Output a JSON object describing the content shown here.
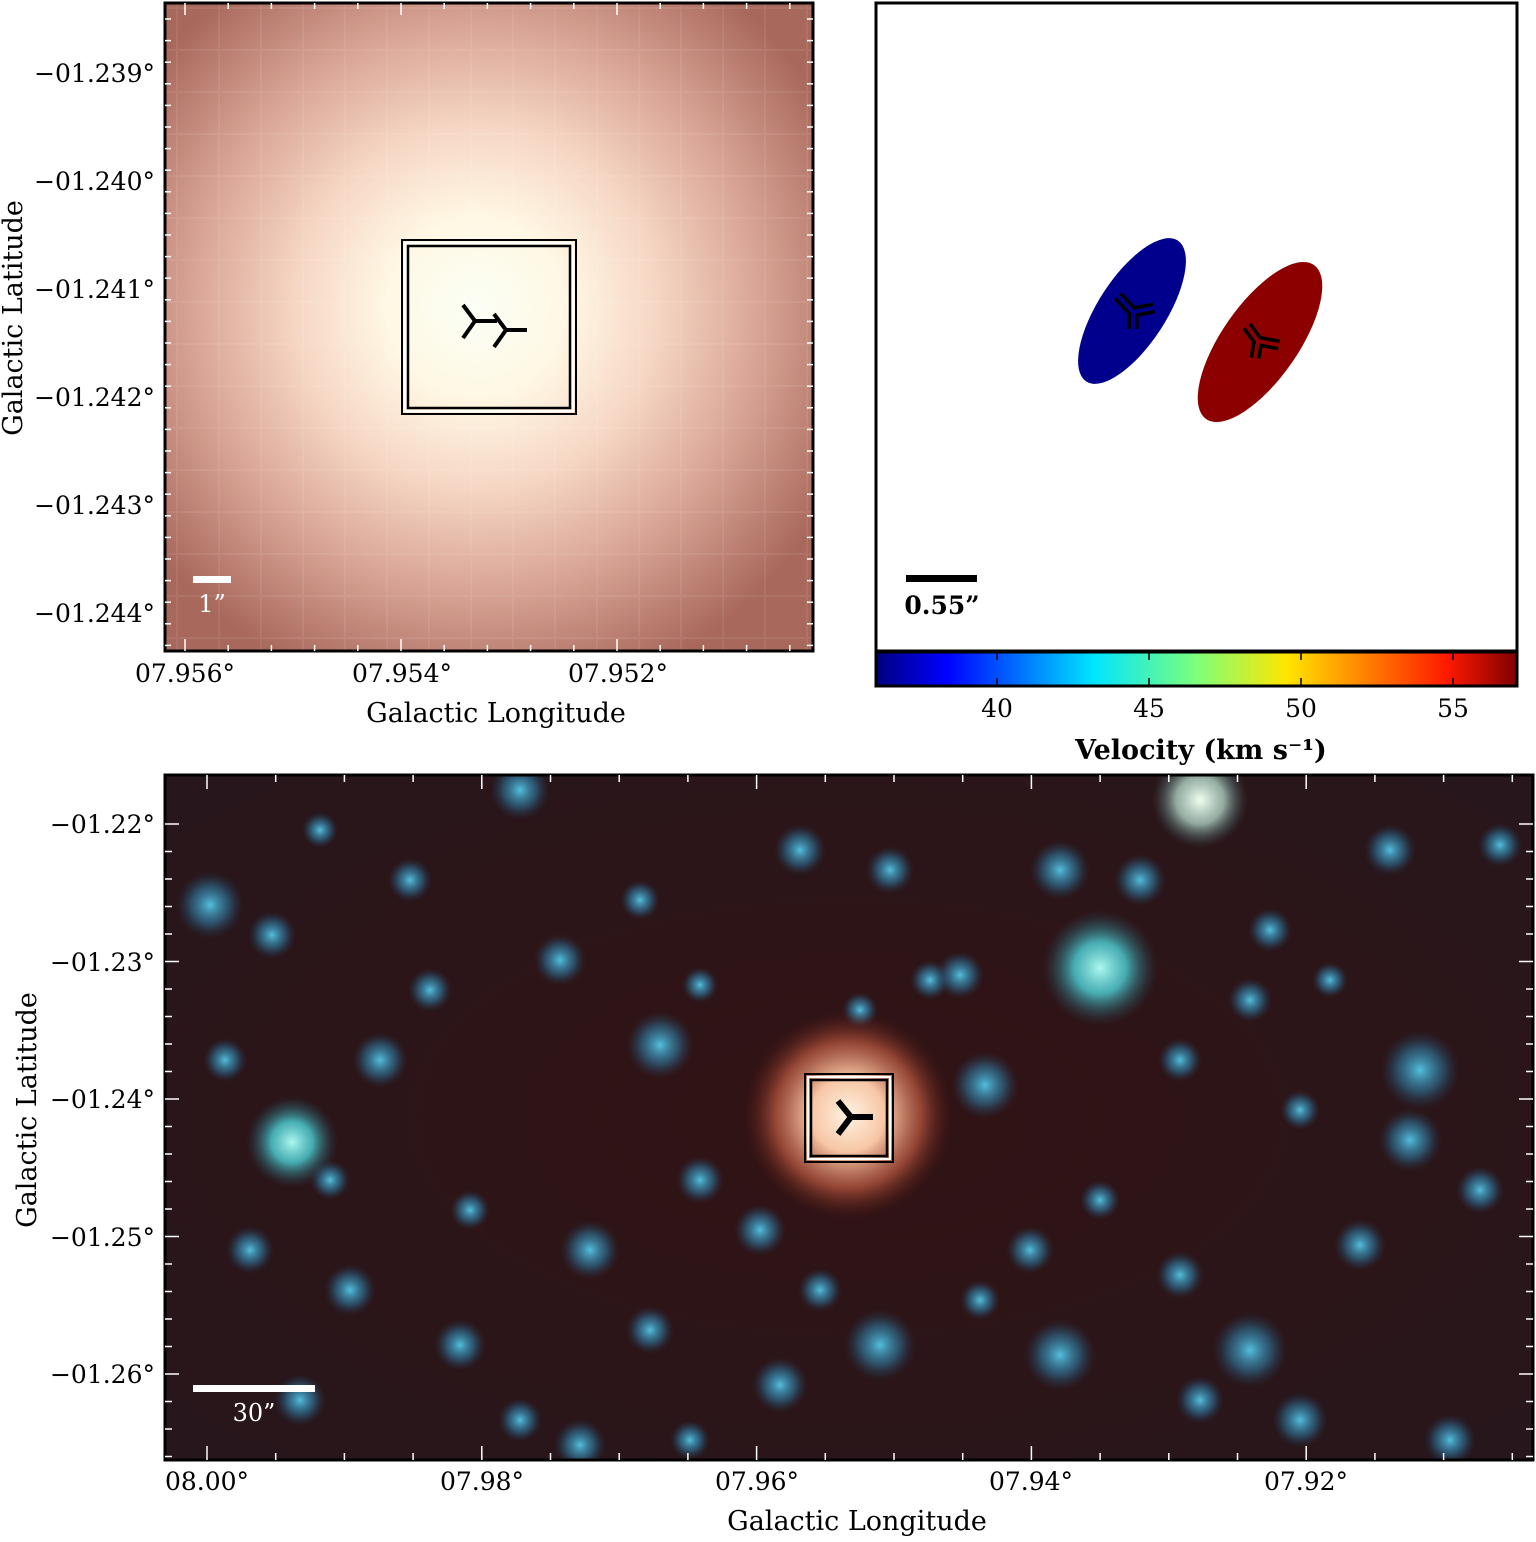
{
  "top_left": {
    "ylabel": "Galactic Latitude",
    "xlabel": "Galactic Longitude",
    "yticks": [
      "−01.239°",
      "−01.240°",
      "−01.241°",
      "−01.242°",
      "−01.243°",
      "−01.244°"
    ],
    "xticks": [
      "07.956°",
      "07.954°",
      "07.952°"
    ],
    "scalebar_label": "1”",
    "marker_icons": [
      "tri-left-icon",
      "tri-left-icon"
    ]
  },
  "top_right": {
    "scalebar_label": "0.55”",
    "blobs": [
      {
        "velocity": 37,
        "color": "#00008c"
      },
      {
        "velocity": 57,
        "color": "#8c0000"
      }
    ],
    "colorbar": {
      "label": "Velocity (km s⁻¹)",
      "ticks": [
        "40",
        "45",
        "50",
        "55"
      ],
      "colormap": "jet"
    }
  },
  "bottom": {
    "ylabel": "Galactic Latitude",
    "xlabel": "Galactic Longitude",
    "yticks": [
      "−01.22°",
      "−01.23°",
      "−01.24°",
      "−01.25°",
      "−01.26°"
    ],
    "xticks": [
      "08.00°",
      "07.98°",
      "07.96°",
      "07.94°",
      "07.92°"
    ],
    "scalebar_label": "30”",
    "marker_icon": "tri-left-icon"
  }
}
